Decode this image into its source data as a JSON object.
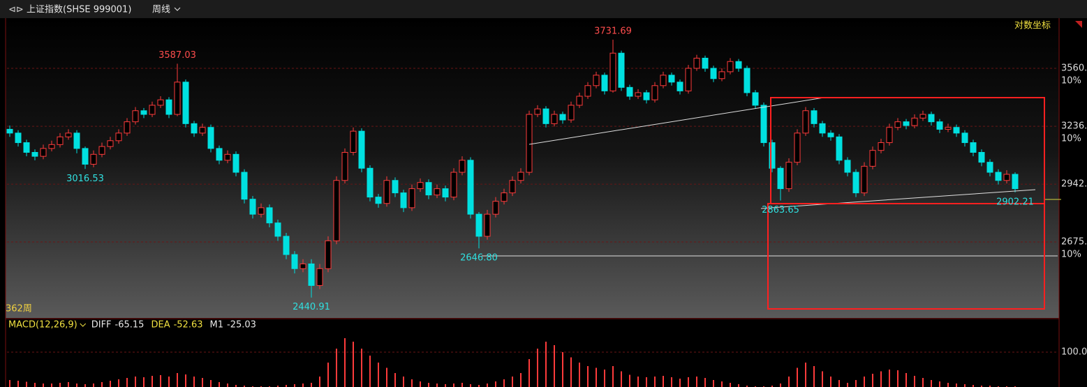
{
  "header": {
    "title": "上证指数(SHSE 999001)",
    "period": "周线"
  },
  "chart_data": {
    "type": "candlestick",
    "log_scale": true,
    "grid": true,
    "scale_label": "对数坐标",
    "count_label": "362周",
    "up_color": "#ff3b3b",
    "down_color": "#00e0e0",
    "ylim": [
      2363,
      3871
    ],
    "yticks": [
      {
        "value": 2675,
        "label": "2675."
      },
      {
        "value": 2942,
        "label": "2942."
      },
      {
        "value": 3236,
        "label": "3236."
      },
      {
        "value": 3560,
        "label": "3560."
      }
    ],
    "ytick_notes": [
      "10%",
      null,
      "10%",
      "10%"
    ],
    "annotations": [
      {
        "value": 3016.53,
        "label": "3016.53"
      },
      {
        "value": 3587.03,
        "label": "3587.03"
      },
      {
        "value": 2440.91,
        "label": "2440.91"
      },
      {
        "value": 2646.8,
        "label": "2646.80"
      },
      {
        "value": 3731.69,
        "label": "3731.69"
      },
      {
        "value": 2863.65,
        "label": "2863.65"
      },
      {
        "value": 2902.21,
        "label": "2902.21"
      }
    ],
    "candles": [
      [
        3220,
        3240,
        3180,
        3200
      ],
      [
        3200,
        3215,
        3130,
        3150
      ],
      [
        3150,
        3165,
        3080,
        3100
      ],
      [
        3100,
        3115,
        3060,
        3080
      ],
      [
        3080,
        3140,
        3065,
        3120
      ],
      [
        3120,
        3160,
        3105,
        3140
      ],
      [
        3140,
        3200,
        3125,
        3180
      ],
      [
        3180,
        3220,
        3165,
        3200
      ],
      [
        3200,
        3215,
        3095,
        3120
      ],
      [
        3120,
        3130,
        3016.53,
        3040
      ],
      [
        3040,
        3110,
        3025,
        3090
      ],
      [
        3090,
        3150,
        3075,
        3130
      ],
      [
        3130,
        3180,
        3115,
        3160
      ],
      [
        3160,
        3220,
        3145,
        3200
      ],
      [
        3200,
        3280,
        3185,
        3260
      ],
      [
        3260,
        3340,
        3245,
        3320
      ],
      [
        3320,
        3335,
        3280,
        3300
      ],
      [
        3300,
        3370,
        3285,
        3350
      ],
      [
        3350,
        3400,
        3335,
        3380
      ],
      [
        3380,
        3395,
        3280,
        3300
      ],
      [
        3300,
        3587.03,
        3290,
        3480
      ],
      [
        3480,
        3495,
        3230,
        3250
      ],
      [
        3250,
        3265,
        3180,
        3200
      ],
      [
        3200,
        3250,
        3185,
        3230
      ],
      [
        3230,
        3245,
        3100,
        3120
      ],
      [
        3120,
        3135,
        3040,
        3060
      ],
      [
        3060,
        3110,
        3045,
        3090
      ],
      [
        3090,
        3105,
        2980,
        3000
      ],
      [
        3000,
        3015,
        2850,
        2870
      ],
      [
        2870,
        2885,
        2780,
        2800
      ],
      [
        2800,
        2850,
        2785,
        2830
      ],
      [
        2830,
        2845,
        2740,
        2760
      ],
      [
        2760,
        2775,
        2680,
        2700
      ],
      [
        2700,
        2715,
        2600,
        2620
      ],
      [
        2620,
        2635,
        2540,
        2560
      ],
      [
        2560,
        2600,
        2545,
        2580
      ],
      [
        2580,
        2600,
        2440.91,
        2490
      ],
      [
        2490,
        2580,
        2475,
        2560
      ],
      [
        2560,
        2700,
        2545,
        2680
      ],
      [
        2680,
        2980,
        2665,
        2960
      ],
      [
        2960,
        3120,
        2945,
        3100
      ],
      [
        3100,
        3230,
        3085,
        3210
      ],
      [
        3210,
        3225,
        3000,
        3020
      ],
      [
        3020,
        3035,
        2860,
        2880
      ],
      [
        2880,
        2895,
        2830,
        2850
      ],
      [
        2850,
        2980,
        2835,
        2960
      ],
      [
        2960,
        2975,
        2880,
        2900
      ],
      [
        2900,
        2915,
        2810,
        2830
      ],
      [
        2830,
        2940,
        2815,
        2920
      ],
      [
        2920,
        2970,
        2905,
        2950
      ],
      [
        2950,
        2965,
        2870,
        2890
      ],
      [
        2890,
        2940,
        2875,
        2920
      ],
      [
        2920,
        2935,
        2860,
        2880
      ],
      [
        2880,
        3020,
        2865,
        3000
      ],
      [
        3000,
        3080,
        2985,
        3060
      ],
      [
        3060,
        3075,
        2780,
        2800
      ],
      [
        2800,
        2810,
        2646.8,
        2700
      ],
      [
        2700,
        2820,
        2685,
        2800
      ],
      [
        2800,
        2880,
        2785,
        2860
      ],
      [
        2860,
        2920,
        2845,
        2900
      ],
      [
        2900,
        2980,
        2885,
        2960
      ],
      [
        2960,
        3020,
        2945,
        3000
      ],
      [
        3000,
        3320,
        2985,
        3300
      ],
      [
        3300,
        3350,
        3285,
        3330
      ],
      [
        3330,
        3345,
        3230,
        3250
      ],
      [
        3250,
        3320,
        3235,
        3300
      ],
      [
        3300,
        3315,
        3250,
        3270
      ],
      [
        3270,
        3370,
        3255,
        3350
      ],
      [
        3350,
        3420,
        3335,
        3400
      ],
      [
        3400,
        3480,
        3385,
        3460
      ],
      [
        3460,
        3540,
        3445,
        3520
      ],
      [
        3520,
        3535,
        3410,
        3430
      ],
      [
        3430,
        3731.69,
        3420,
        3650
      ],
      [
        3650,
        3665,
        3430,
        3450
      ],
      [
        3450,
        3465,
        3380,
        3400
      ],
      [
        3400,
        3440,
        3385,
        3420
      ],
      [
        3420,
        3435,
        3360,
        3380
      ],
      [
        3380,
        3480,
        3365,
        3460
      ],
      [
        3460,
        3540,
        3445,
        3520
      ],
      [
        3520,
        3535,
        3460,
        3480
      ],
      [
        3480,
        3495,
        3410,
        3430
      ],
      [
        3430,
        3580,
        3415,
        3560
      ],
      [
        3560,
        3640,
        3545,
        3620
      ],
      [
        3620,
        3635,
        3540,
        3560
      ],
      [
        3560,
        3575,
        3480,
        3500
      ],
      [
        3500,
        3560,
        3485,
        3540
      ],
      [
        3540,
        3620,
        3525,
        3600
      ],
      [
        3600,
        3615,
        3540,
        3560
      ],
      [
        3560,
        3575,
        3400,
        3420
      ],
      [
        3420,
        3435,
        3330,
        3350
      ],
      [
        3350,
        3365,
        3130,
        3150
      ],
      [
        3150,
        3165,
        3000,
        3020
      ],
      [
        3020,
        3030,
        2863.65,
        2920
      ],
      [
        2920,
        3070,
        2905,
        3050
      ],
      [
        3050,
        3220,
        3035,
        3200
      ],
      [
        3200,
        3340,
        3185,
        3320
      ],
      [
        3320,
        3335,
        3230,
        3250
      ],
      [
        3250,
        3265,
        3180,
        3200
      ],
      [
        3200,
        3215,
        3160,
        3180
      ],
      [
        3180,
        3195,
        3040,
        3060
      ],
      [
        3060,
        3075,
        2980,
        3000
      ],
      [
        3000,
        3015,
        2880,
        2900
      ],
      [
        2900,
        3050,
        2885,
        3030
      ],
      [
        3030,
        3130,
        3015,
        3110
      ],
      [
        3110,
        3170,
        3095,
        3150
      ],
      [
        3150,
        3250,
        3135,
        3230
      ],
      [
        3230,
        3280,
        3215,
        3260
      ],
      [
        3260,
        3275,
        3220,
        3240
      ],
      [
        3240,
        3300,
        3225,
        3280
      ],
      [
        3280,
        3320,
        3265,
        3300
      ],
      [
        3300,
        3315,
        3240,
        3260
      ],
      [
        3260,
        3275,
        3200,
        3220
      ],
      [
        3220,
        3250,
        3205,
        3230
      ],
      [
        3230,
        3245,
        3180,
        3200
      ],
      [
        3200,
        3215,
        3130,
        3150
      ],
      [
        3150,
        3165,
        3080,
        3100
      ],
      [
        3100,
        3115,
        3030,
        3050
      ],
      [
        3050,
        3065,
        2980,
        3000
      ],
      [
        3000,
        3015,
        2940,
        2960
      ],
      [
        2960,
        3010,
        2945,
        2990
      ],
      [
        2990,
        3000,
        2902.21,
        2920
      ]
    ],
    "indicator": {
      "name": "MACD(12,26,9)",
      "items": [
        {
          "label": "DIFF",
          "value": -65.15,
          "color": "#e8e8e8"
        },
        {
          "label": "DEA",
          "value": -52.63,
          "color": "#f0e040"
        },
        {
          "label": "M1",
          "value": -25.03,
          "color": "#e8e8e8"
        }
      ],
      "ylim": [
        0,
        190
      ],
      "yticks": [
        {
          "value": 100,
          "label": "100.0"
        }
      ],
      "hist": [
        20,
        18,
        15,
        12,
        10,
        10,
        12,
        14,
        10,
        8,
        10,
        14,
        18,
        22,
        26,
        30,
        28,
        32,
        34,
        30,
        40,
        36,
        30,
        26,
        20,
        14,
        10,
        6,
        4,
        2,
        2,
        2,
        4,
        6,
        8,
        10,
        12,
        30,
        70,
        110,
        140,
        130,
        110,
        90,
        70,
        55,
        40,
        30,
        22,
        16,
        12,
        10,
        8,
        10,
        12,
        8,
        6,
        10,
        16,
        22,
        30,
        40,
        80,
        110,
        130,
        120,
        100,
        85,
        70,
        60,
        55,
        50,
        60,
        45,
        35,
        30,
        28,
        30,
        32,
        28,
        24,
        28,
        30,
        26,
        20,
        16,
        12,
        8,
        4,
        2,
        2,
        4,
        10,
        30,
        55,
        70,
        60,
        45,
        30,
        20,
        12,
        20,
        30,
        38,
        45,
        50,
        48,
        40,
        32,
        26,
        20,
        16,
        12,
        10,
        8,
        6,
        4,
        4,
        2,
        2,
        2
      ]
    }
  }
}
